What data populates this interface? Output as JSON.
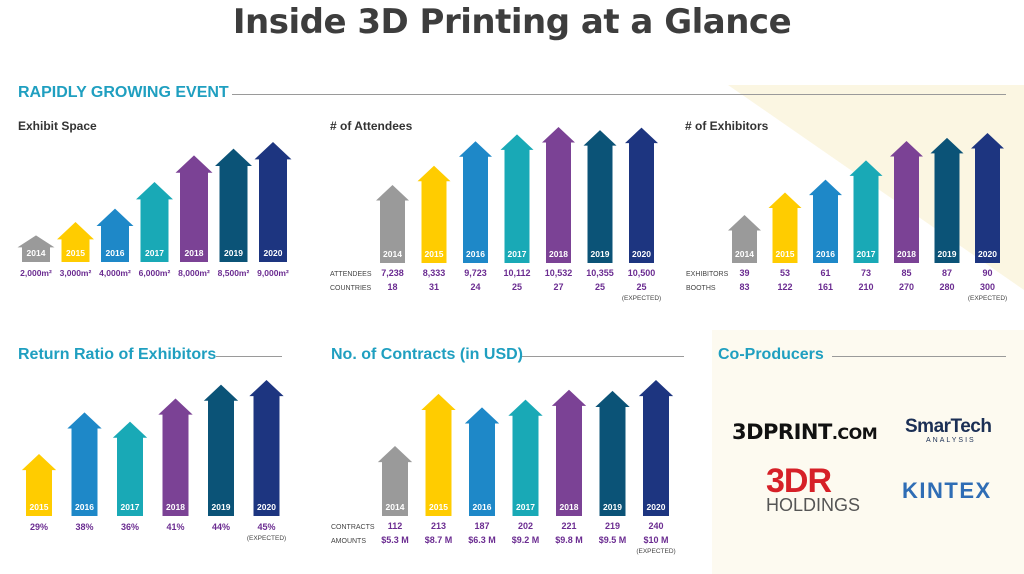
{
  "title": "Inside 3D Printing at a Glance",
  "sections": {
    "growing": "RAPIDLY GROWING EVENT",
    "return": "Return Ratio of Exhibitors",
    "contracts": "No. of Contracts (in USD)",
    "coproducers": "Co-Producers"
  },
  "colors": {
    "2014": "#9a9a9a",
    "2015": "#ffcc00",
    "2016": "#1e88c8",
    "2017": "#19a9b6",
    "2018": "#7b4295",
    "2019": "#0b5377",
    "2020": "#1d3580",
    "value_text": "#6b2c91",
    "section_title": "#1f9fc0"
  },
  "chart_data": [
    {
      "type": "bar",
      "title": "Exhibit Space",
      "categories": [
        "2014",
        "2015",
        "2016",
        "2017",
        "2018",
        "2019",
        "2020"
      ],
      "values": [
        2000,
        3000,
        4000,
        6000,
        8000,
        8500,
        9000
      ],
      "value_labels": [
        "2,000m²",
        "3,000m²",
        "4,000m²",
        "6,000m²",
        "8,000m²",
        "8,500m²",
        "9,000m²"
      ]
    },
    {
      "type": "bar",
      "title": "# of Attendees",
      "categories": [
        "2014",
        "2015",
        "2016",
        "2017",
        "2018",
        "2019",
        "2020"
      ],
      "series": [
        {
          "name": "ATTENDEES",
          "values": [
            7238,
            8333,
            9723,
            10112,
            10532,
            10355,
            10500
          ],
          "labels": [
            "7,238",
            "8,333",
            "9,723",
            "10,112",
            "10,532",
            "10,355",
            "10,500"
          ]
        },
        {
          "name": "COUNTRIES",
          "values": [
            18,
            31,
            24,
            25,
            27,
            25,
            25
          ],
          "labels": [
            "18",
            "31",
            "24",
            "25",
            "27",
            "25",
            "25"
          ]
        }
      ],
      "note": "(EXPECTED)"
    },
    {
      "type": "bar",
      "title": "# of Exhibitors",
      "categories": [
        "2014",
        "2015",
        "2016",
        "2017",
        "2018",
        "2019",
        "2020"
      ],
      "series": [
        {
          "name": "EXHIBITORS",
          "values": [
            39,
            53,
            61,
            73,
            85,
            87,
            90
          ],
          "labels": [
            "39",
            "53",
            "61",
            "73",
            "85",
            "87",
            "90"
          ]
        },
        {
          "name": "BOOTHS",
          "values": [
            83,
            122,
            161,
            210,
            270,
            280,
            300
          ],
          "labels": [
            "83",
            "122",
            "161",
            "210",
            "270",
            "280",
            "300"
          ]
        }
      ],
      "note": "(EXPECTED)"
    },
    {
      "type": "bar",
      "title": "Return Ratio of Exhibitors",
      "categories": [
        "2015",
        "2016",
        "2017",
        "2018",
        "2019",
        "2020"
      ],
      "values": [
        29,
        38,
        36,
        41,
        44,
        45
      ],
      "value_labels": [
        "29%",
        "38%",
        "36%",
        "41%",
        "44%",
        "45%"
      ],
      "note": "(EXPECTED)"
    },
    {
      "type": "bar",
      "title": "No. of Contracts (in USD)",
      "categories": [
        "2014",
        "2015",
        "2016",
        "2017",
        "2018",
        "2019",
        "2020"
      ],
      "series": [
        {
          "name": "CONTRACTS",
          "values": [
            112,
            213,
            187,
            202,
            221,
            219,
            240
          ],
          "labels": [
            "112",
            "213",
            "187",
            "202",
            "221",
            "219",
            "240"
          ]
        },
        {
          "name": "AMOUNTS",
          "values": [
            5.3,
            8.7,
            6.3,
            9.2,
            9.8,
            9.5,
            10
          ],
          "labels": [
            "$5.3 M",
            "$8.7 M",
            "$6.3 M",
            "$9.2 M",
            "$9.8 M",
            "$9.5 M",
            "$10 M"
          ]
        }
      ],
      "note": "(EXPECTED)"
    }
  ],
  "coproducers": {
    "print3d_main": "3DPRINT",
    "print3d_suffix": ".COM",
    "smartech": "SmarTech",
    "smartech_sub": "ANALYSIS",
    "tdr": "3DR",
    "tdr_sub": "HOLDINGS",
    "kintex": "KINTEX"
  }
}
